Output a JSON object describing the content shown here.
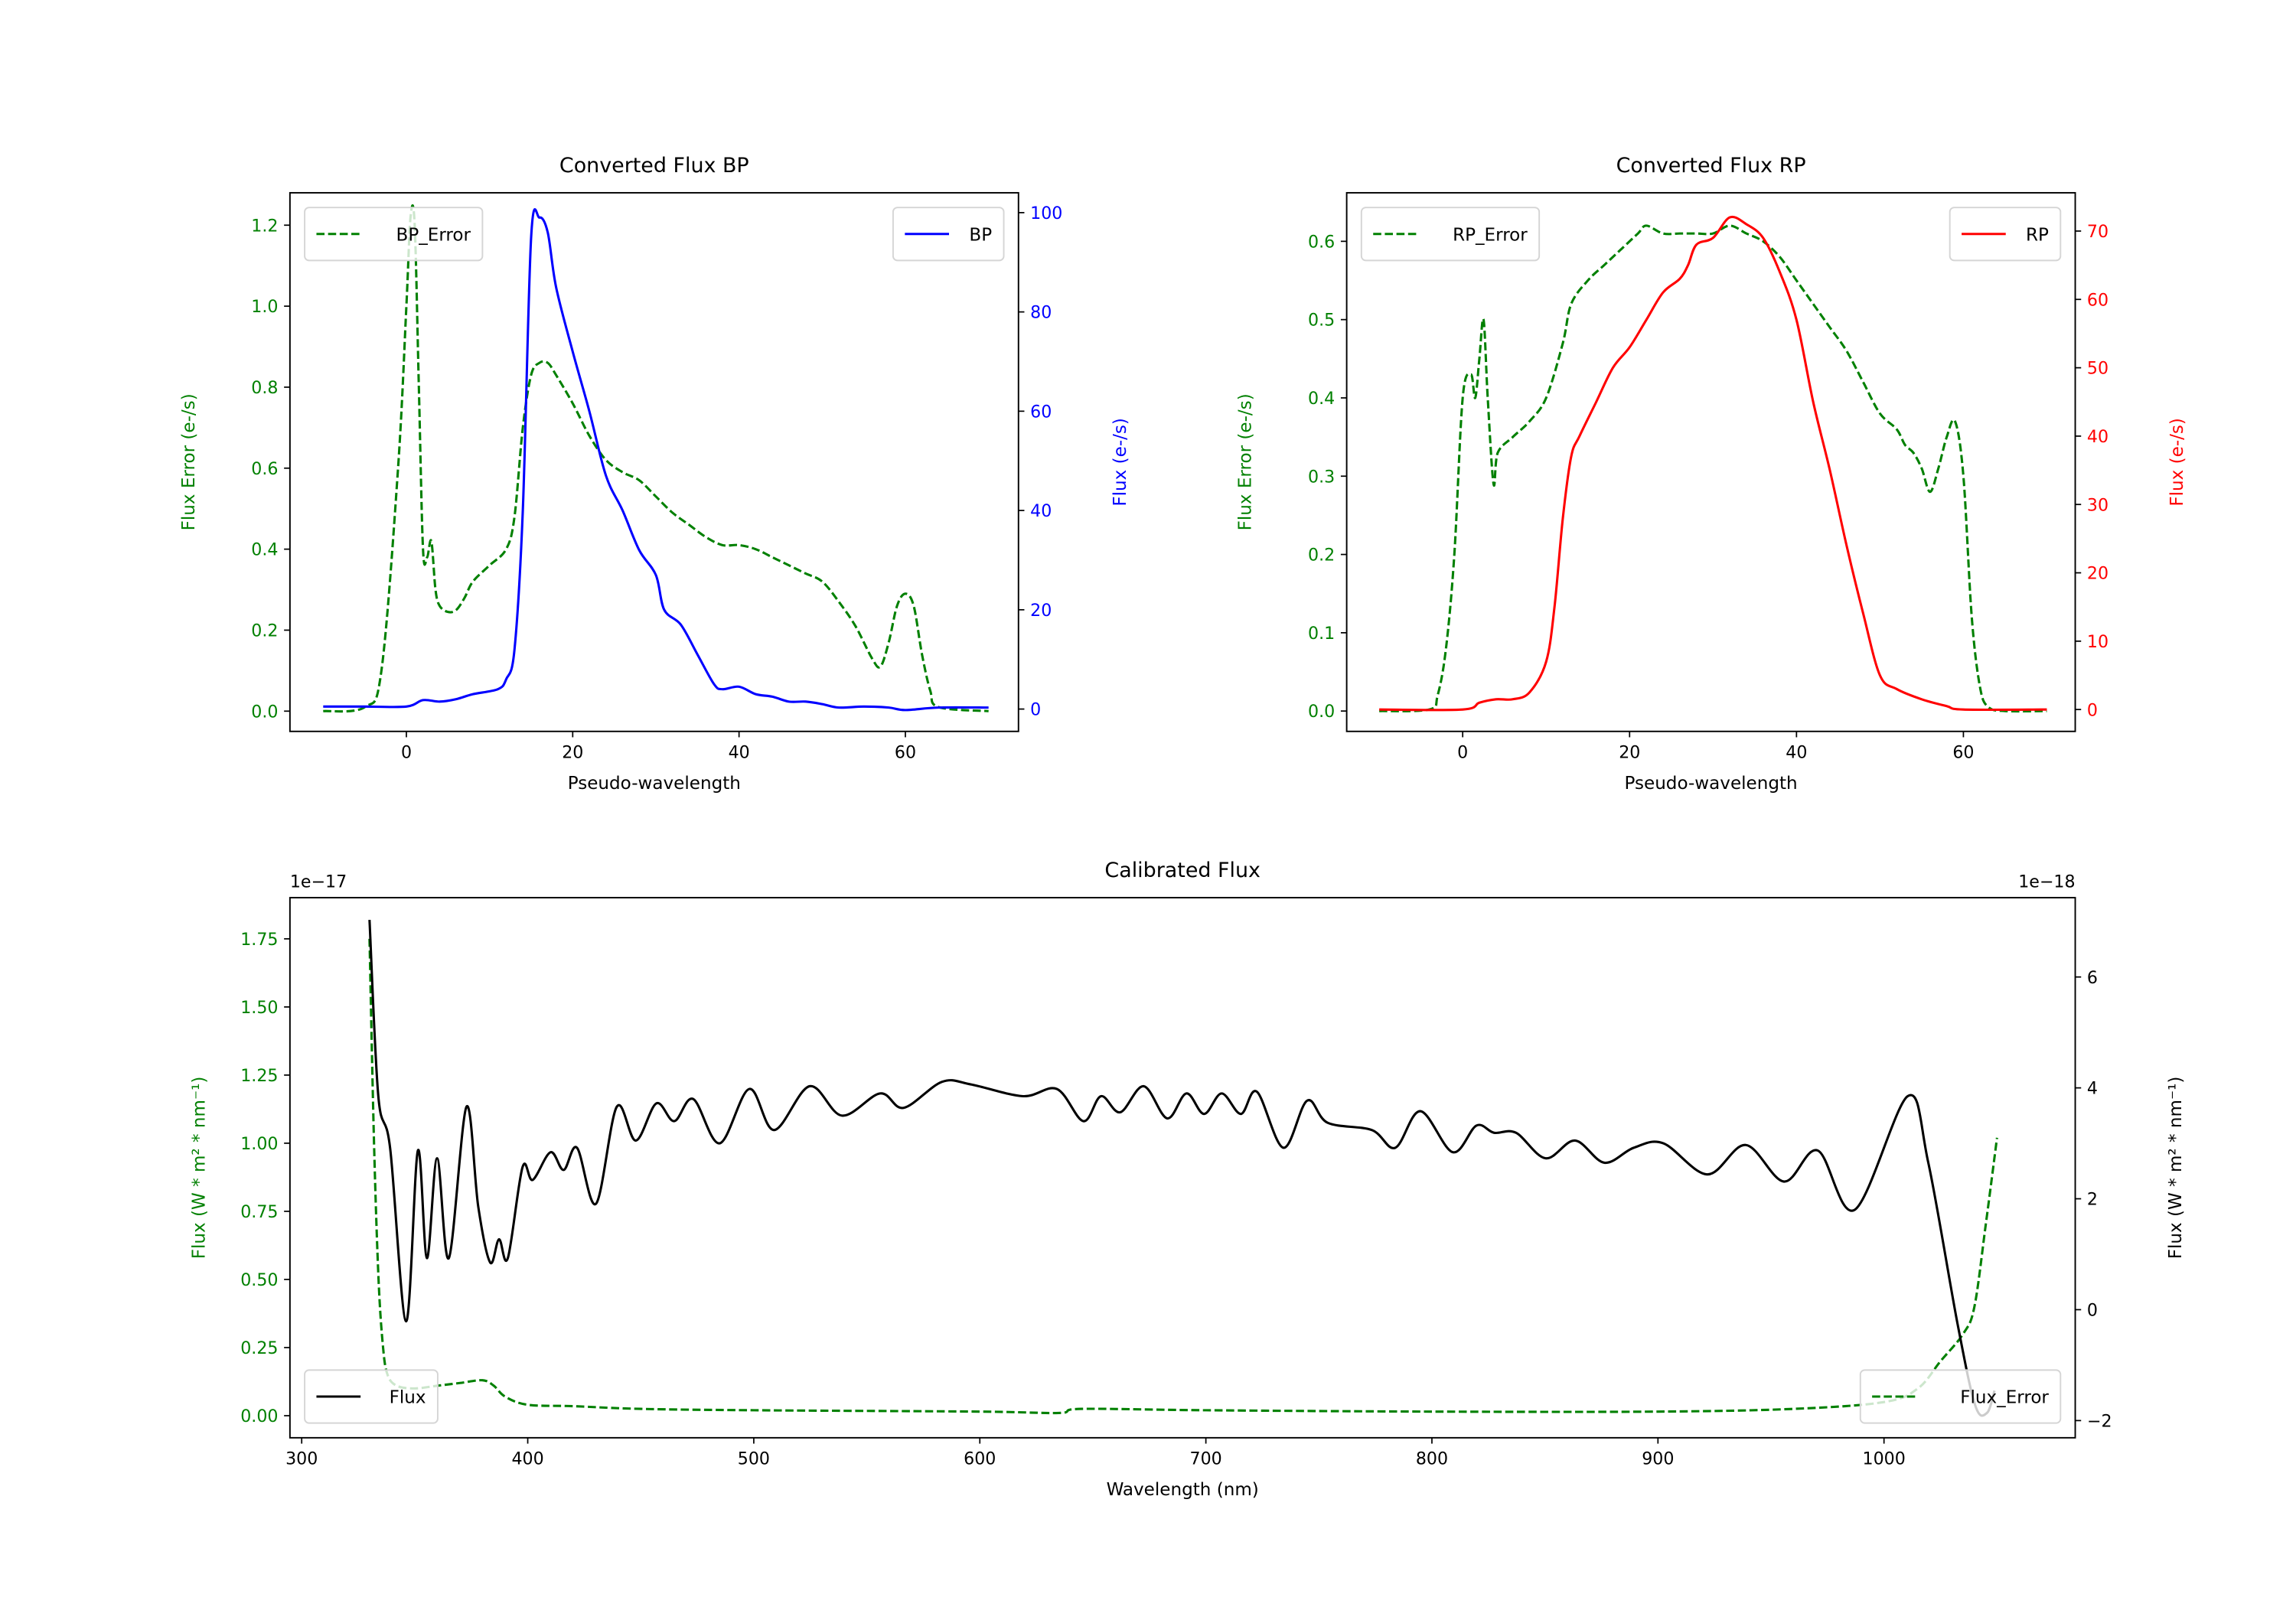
{
  "colors": {
    "green": "#008000",
    "blue": "#0000ff",
    "red": "#ff0000",
    "black": "#000000"
  },
  "chart_data": [
    {
      "type": "line",
      "title": "Converted Flux BP",
      "xlabel": "Pseudo-wavelength",
      "ylabel_left": "Flux Error (e-/s)",
      "ylabel_right": "Flux (e-/s)",
      "left_color": "#008000",
      "right_color": "#0000ff",
      "xlim": [
        -14,
        73.6
      ],
      "ylim_left": [
        -0.05,
        1.28
      ],
      "ylim_right": [
        -4.5,
        104
      ],
      "xticks": [
        0,
        20,
        40,
        60
      ],
      "xtick_labels": [
        "0",
        "20",
        "40",
        "60"
      ],
      "yticks_left": [
        0,
        0.2,
        0.4,
        0.6,
        0.8,
        1.0,
        1.2
      ],
      "ytick_labels_left": [
        "0.0",
        "0.2",
        "0.4",
        "0.6",
        "0.8",
        "1.0",
        "1.2"
      ],
      "yticks_right": [
        0,
        20,
        40,
        60,
        80,
        100
      ],
      "ytick_labels_right": [
        "0",
        "20",
        "40",
        "60",
        "80",
        "100"
      ],
      "legends": [
        {
          "label": "BP_Error",
          "style": "dashed",
          "color": "#008000",
          "placement": "upper-left"
        },
        {
          "label": "BP",
          "style": "solid",
          "color": "#0000ff",
          "placement": "upper-right"
        }
      ],
      "series": [
        {
          "name": "BP_Error",
          "axis": "left",
          "style": "dashed",
          "color": "#008000",
          "x": [
            -10,
            -5,
            -3,
            -1,
            0,
            0.5,
            1,
            1.5,
            2,
            2.5,
            3,
            3.5,
            4,
            5,
            6,
            7,
            8,
            10,
            12,
            13,
            14,
            15,
            16,
            17,
            18,
            20,
            22,
            24,
            26,
            28,
            30,
            32,
            34,
            36,
            38,
            40,
            42,
            44,
            46,
            48,
            50,
            52,
            54,
            56,
            57,
            58,
            59,
            60,
            61,
            62,
            63,
            64,
            70
          ],
          "y": [
            0,
            0.01,
            0.1,
            0.6,
            1.0,
            1.22,
            1.2,
            0.8,
            0.4,
            0.38,
            0.42,
            0.3,
            0.26,
            0.245,
            0.25,
            0.28,
            0.32,
            0.36,
            0.4,
            0.48,
            0.7,
            0.83,
            0.86,
            0.86,
            0.83,
            0.76,
            0.68,
            0.62,
            0.59,
            0.57,
            0.53,
            0.49,
            0.46,
            0.43,
            0.41,
            0.41,
            0.4,
            0.38,
            0.36,
            0.34,
            0.32,
            0.27,
            0.21,
            0.13,
            0.11,
            0.17,
            0.26,
            0.29,
            0.26,
            0.14,
            0.05,
            0.01,
            0
          ]
        },
        {
          "name": "BP",
          "axis": "right",
          "style": "solid",
          "color": "#0000ff",
          "x": [
            -10,
            -5,
            0,
            2,
            4,
            6,
            8,
            11,
            12,
            13,
            14,
            15,
            16,
            17,
            18,
            20,
            22,
            24,
            26,
            28,
            30,
            31,
            33,
            35,
            37,
            38,
            40,
            42,
            44,
            46,
            48,
            50,
            52,
            55,
            58,
            60,
            64,
            70
          ],
          "y": [
            0.5,
            0.5,
            0.5,
            1.8,
            1.5,
            2,
            3,
            4,
            6,
            12,
            40,
            95,
            99,
            96,
            85,
            72,
            60,
            47,
            40,
            32,
            27,
            20,
            17,
            11,
            5,
            4,
            4.5,
            3,
            2.5,
            1.5,
            1.5,
            1,
            0.3,
            0.5,
            0.3,
            -0.2,
            0.3,
            0.3
          ]
        }
      ]
    },
    {
      "type": "line",
      "title": "Converted Flux RP",
      "xlabel": "Pseudo-wavelength",
      "ylabel_left": "Flux Error (e-/s)",
      "ylabel_right": "Flux (e-/s)",
      "left_color": "#008000",
      "right_color": "#ff0000",
      "xlim": [
        -13.9,
        73.4
      ],
      "ylim_left": [
        -0.026,
        0.662
      ],
      "ylim_right": [
        -3.2,
        75.6
      ],
      "xticks": [
        0,
        20,
        40,
        60
      ],
      "xtick_labels": [
        "0",
        "20",
        "40",
        "60"
      ],
      "yticks_left": [
        0,
        0.1,
        0.2,
        0.3,
        0.4,
        0.5,
        0.6
      ],
      "ytick_labels_left": [
        "0.0",
        "0.1",
        "0.2",
        "0.3",
        "0.4",
        "0.5",
        "0.6"
      ],
      "yticks_right": [
        0,
        10,
        20,
        30,
        40,
        50,
        60,
        70
      ],
      "ytick_labels_right": [
        "0",
        "10",
        "20",
        "30",
        "40",
        "50",
        "60",
        "70"
      ],
      "legends": [
        {
          "label": "RP_Error",
          "style": "dashed",
          "color": "#008000",
          "placement": "upper-left"
        },
        {
          "label": "RP",
          "style": "solid",
          "color": "#ff0000",
          "placement": "upper-right"
        }
      ],
      "series": [
        {
          "name": "RP_Error",
          "axis": "left",
          "style": "dashed",
          "color": "#008000",
          "x": [
            -10,
            -4,
            -3,
            -2,
            -1,
            0,
            1,
            1.5,
            2,
            2.5,
            3,
            3.7,
            4.2,
            6,
            8,
            10,
            12,
            13,
            15,
            17,
            19,
            21,
            22,
            24,
            26,
            28,
            30,
            32,
            34,
            36,
            38,
            40,
            42,
            44,
            46,
            48,
            50,
            52,
            53,
            54,
            55,
            56,
            57,
            58,
            59,
            60,
            61,
            62,
            63,
            65,
            70
          ],
          "y": [
            0,
            0.002,
            0.02,
            0.08,
            0.2,
            0.4,
            0.43,
            0.4,
            0.45,
            0.5,
            0.4,
            0.29,
            0.33,
            0.35,
            0.37,
            0.4,
            0.47,
            0.52,
            0.55,
            0.57,
            0.59,
            0.61,
            0.62,
            0.61,
            0.61,
            0.61,
            0.61,
            0.62,
            0.61,
            0.6,
            0.58,
            0.55,
            0.52,
            0.49,
            0.46,
            0.42,
            0.38,
            0.36,
            0.34,
            0.33,
            0.31,
            0.28,
            0.31,
            0.35,
            0.37,
            0.3,
            0.12,
            0.03,
            0.005,
            0,
            0
          ]
        },
        {
          "name": "RP",
          "axis": "right",
          "style": "solid",
          "color": "#ff0000",
          "x": [
            -10,
            0,
            2,
            4,
            6,
            8,
            10,
            11,
            12,
            13,
            14,
            16,
            18,
            20,
            22,
            24,
            26,
            27,
            28,
            30,
            32,
            34,
            36,
            38,
            40,
            42,
            44,
            46,
            48,
            50,
            52,
            55,
            58,
            60,
            70
          ],
          "y": [
            0,
            0,
            1,
            1.5,
            1.5,
            2.5,
            7,
            15,
            28,
            37,
            40,
            45,
            50,
            53,
            57,
            61,
            63,
            65,
            68,
            69,
            72,
            71,
            69,
            64,
            57,
            45,
            35,
            24,
            14,
            5,
            3,
            1.5,
            0.5,
            0,
            0
          ]
        }
      ]
    },
    {
      "type": "line",
      "title": "Calibrated Flux",
      "xlabel": "Wavelength (nm)",
      "ylabel_left": "Flux (W * m² * nm⁻¹)",
      "ylabel_right": "Flux (W * m² * nm⁻¹)",
      "left_color": "#008000",
      "right_color": "#000000",
      "left_offset_text": "1e−17",
      "right_offset_text": "1e−18",
      "xlim": [
        294.8,
        1084.6
      ],
      "ylim_left": [
        -0.081,
        1.901
      ],
      "ylim_right": [
        -2.31,
        7.43
      ],
      "xticks": [
        300,
        400,
        500,
        600,
        700,
        800,
        900,
        1000
      ],
      "xtick_labels": [
        "300",
        "400",
        "500",
        "600",
        "700",
        "800",
        "900",
        "1000"
      ],
      "yticks_left": [
        0,
        0.25,
        0.5,
        0.75,
        1.0,
        1.25,
        1.5,
        1.75
      ],
      "ytick_labels_left": [
        "0.00",
        "0.25",
        "0.50",
        "0.75",
        "1.00",
        "1.25",
        "1.50",
        "1.75"
      ],
      "yticks_right": [
        -2,
        0,
        2,
        4,
        6
      ],
      "ytick_labels_right": [
        "−2",
        "0",
        "2",
        "4",
        "6"
      ],
      "legends": [
        {
          "label": "Flux",
          "style": "solid",
          "color": "#000000",
          "placement": "lower-left"
        },
        {
          "label": "Flux_Error",
          "style": "dashed",
          "color": "#008000",
          "placement": "lower-right"
        }
      ],
      "series": [
        {
          "name": "Flux_Error",
          "axis": "left",
          "style": "dashed",
          "color": "#008000",
          "x": [
            330,
            332,
            334,
            336,
            338,
            342,
            350,
            360,
            370,
            380,
            385,
            390,
            400,
            420,
            450,
            500,
            600,
            635,
            645,
            700,
            800,
            900,
            960,
            1000,
            1015,
            1025,
            1035,
            1040,
            1045,
            1050
          ],
          "y": [
            1.75,
            1.0,
            0.5,
            0.25,
            0.15,
            0.11,
            0.1,
            0.11,
            0.12,
            0.13,
            0.11,
            0.07,
            0.04,
            0.035,
            0.025,
            0.02,
            0.015,
            0.01,
            0.025,
            0.02,
            0.015,
            0.015,
            0.025,
            0.05,
            0.1,
            0.2,
            0.3,
            0.4,
            0.7,
            1.02
          ]
        },
        {
          "name": "Flux",
          "axis": "right",
          "style": "solid",
          "color": "#000000",
          "x": [
            330.0,
            333.9,
            339.1,
            346.2,
            351.4,
            355.4,
            359.9,
            365.1,
            372.9,
            378.1,
            383.4,
            387.3,
            391.2,
            397.7,
            402.2,
            410.1,
            415.9,
            421.8,
            430.2,
            439.4,
            447.8,
            456.9,
            464.8,
            473.2,
            484.9,
            498.0,
            509.0,
            524.7,
            539.0,
            555.9,
            566.3,
            583.3,
            596.3,
            619.1,
            634.1,
            645.8,
            653.6,
            662.1,
            672.5,
            682.9,
            691.4,
            699.2,
            707.0,
            715.5,
            722.6,
            734.3,
            744.8,
            753.9,
            773.4,
            783.8,
            794.9,
            809.2,
            819.7,
            827.5,
            837.2,
            850.3,
            863.3,
            876.3,
            889.3,
            902.4,
            921.9,
            938.8,
            955.8,
            970.7,
            987.0,
            1010.5,
            1019.6,
            1032.6,
            1040.4,
            1045.6,
            1048.9
          ],
          "y": [
            7.03,
            3.85,
            2.92,
            -0.21,
            2.87,
            0.93,
            2.73,
            0.93,
            3.66,
            1.86,
            0.85,
            1.27,
            0.93,
            2.57,
            2.34,
            2.84,
            2.52,
            2.92,
            1.91,
            3.66,
            3.05,
            3.72,
            3.4,
            3.8,
            3.0,
            3.98,
            3.24,
            4.03,
            3.5,
            3.9,
            3.64,
            4.11,
            4.06,
            3.85,
            3.98,
            3.4,
            3.85,
            3.56,
            4.03,
            3.45,
            3.9,
            3.53,
            3.9,
            3.53,
            3.93,
            2.92,
            3.77,
            3.37,
            3.24,
            2.92,
            3.58,
            2.84,
            3.32,
            3.19,
            3.19,
            2.73,
            3.05,
            2.65,
            2.92,
            3.0,
            2.44,
            2.97,
            2.31,
            2.87,
            1.8,
            3.85,
            2.65,
            -0.27,
            -1.73,
            -1.86,
            -1.46
          ]
        }
      ]
    }
  ]
}
